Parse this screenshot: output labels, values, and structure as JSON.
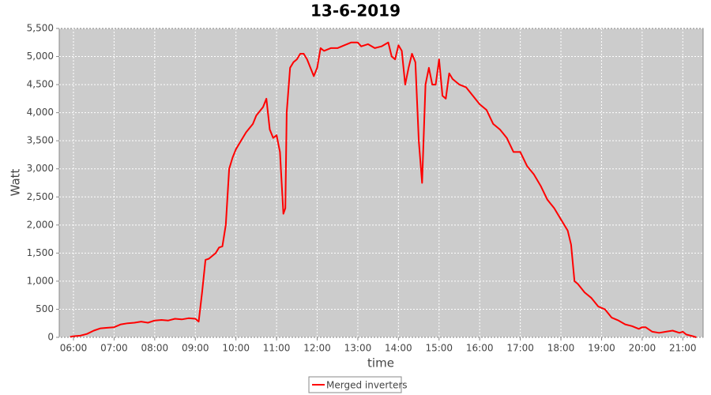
{
  "chart_data": {
    "type": "line",
    "title": "13-6-2019",
    "x_label": "time",
    "y_label": "Watt",
    "x": [
      "05:55",
      "06:00",
      "06:10",
      "06:20",
      "06:30",
      "06:40",
      "06:50",
      "07:00",
      "07:10",
      "07:20",
      "07:30",
      "07:40",
      "07:50",
      "08:00",
      "08:10",
      "08:20",
      "08:30",
      "08:40",
      "08:50",
      "09:00",
      "09:05",
      "09:10",
      "09:15",
      "09:20",
      "09:30",
      "09:35",
      "09:40",
      "09:45",
      "09:50",
      "09:55",
      "10:00",
      "10:10",
      "10:15",
      "10:25",
      "10:30",
      "10:40",
      "10:45",
      "10:50",
      "10:55",
      "11:00",
      "11:05",
      "11:10",
      "11:13",
      "11:15",
      "11:20",
      "11:25",
      "11:30",
      "11:35",
      "11:40",
      "11:45",
      "11:55",
      "12:00",
      "12:05",
      "12:10",
      "12:20",
      "12:30",
      "12:40",
      "12:50",
      "13:00",
      "13:05",
      "13:15",
      "13:25",
      "13:35",
      "13:45",
      "13:50",
      "13:55",
      "14:00",
      "14:05",
      "14:10",
      "14:15",
      "14:20",
      "14:25",
      "14:30",
      "14:35",
      "14:40",
      "14:45",
      "14:50",
      "14:55",
      "15:00",
      "15:05",
      "15:10",
      "15:15",
      "15:20",
      "15:30",
      "15:40",
      "15:50",
      "16:00",
      "16:10",
      "16:20",
      "16:30",
      "16:40",
      "16:50",
      "17:00",
      "17:10",
      "17:20",
      "17:30",
      "17:40",
      "17:50",
      "18:00",
      "18:10",
      "18:15",
      "18:20",
      "18:25",
      "18:35",
      "18:45",
      "18:55",
      "19:05",
      "19:15",
      "19:25",
      "19:35",
      "19:45",
      "19:55",
      "20:00",
      "20:05",
      "20:15",
      "20:25",
      "20:35",
      "20:45",
      "20:55",
      "21:00",
      "21:05",
      "21:15",
      "21:20"
    ],
    "series": [
      {
        "name": "Merged inverters",
        "color": "#ff0000",
        "values": [
          10,
          20,
          30,
          60,
          120,
          160,
          170,
          180,
          230,
          250,
          260,
          280,
          260,
          300,
          310,
          300,
          330,
          320,
          340,
          330,
          280,
          800,
          1380,
          1400,
          1500,
          1600,
          1620,
          2000,
          3000,
          3200,
          3350,
          3550,
          3650,
          3800,
          3950,
          4100,
          4250,
          3700,
          3550,
          3600,
          3300,
          2200,
          2300,
          4000,
          4800,
          4900,
          4950,
          5050,
          5050,
          4950,
          4650,
          4800,
          5150,
          5100,
          5150,
          5150,
          5200,
          5250,
          5250,
          5180,
          5220,
          5150,
          5180,
          5250,
          5000,
          4950,
          5200,
          5100,
          4500,
          4800,
          5050,
          4900,
          3500,
          2750,
          4500,
          4800,
          4500,
          4500,
          4950,
          4300,
          4250,
          4700,
          4600,
          4500,
          4450,
          4300,
          4150,
          4050,
          3800,
          3700,
          3550,
          3300,
          3300,
          3050,
          2900,
          2700,
          2450,
          2300,
          2100,
          1900,
          1650,
          1000,
          950,
          800,
          700,
          550,
          500,
          350,
          300,
          230,
          200,
          150,
          180,
          180,
          100,
          80,
          100,
          120,
          80,
          100,
          50,
          20,
          0
        ]
      }
    ],
    "xlim": [
      "05:39",
      "21:30"
    ],
    "xticks": [
      "06:00",
      "07:00",
      "08:00",
      "09:00",
      "10:00",
      "11:00",
      "12:00",
      "13:00",
      "14:00",
      "15:00",
      "16:00",
      "17:00",
      "18:00",
      "19:00",
      "20:00",
      "21:00"
    ],
    "ylim": [
      0,
      5500
    ],
    "yticks": [
      0,
      500,
      {
        "value": 1000,
        "label": "1,000"
      },
      {
        "value": 1500,
        "label": "1,500"
      },
      {
        "value": 2000,
        "label": "2,000"
      },
      {
        "value": 2500,
        "label": "2,500"
      },
      {
        "value": 3000,
        "label": "3,000"
      },
      {
        "value": 3500,
        "label": "3,500"
      },
      {
        "value": 4000,
        "label": "4,000"
      },
      {
        "value": 4500,
        "label": "4,500"
      },
      {
        "value": 5000,
        "label": "5,000"
      },
      {
        "value": 5500,
        "label": "5,500"
      }
    ],
    "grid": true,
    "legend": "bottom"
  }
}
